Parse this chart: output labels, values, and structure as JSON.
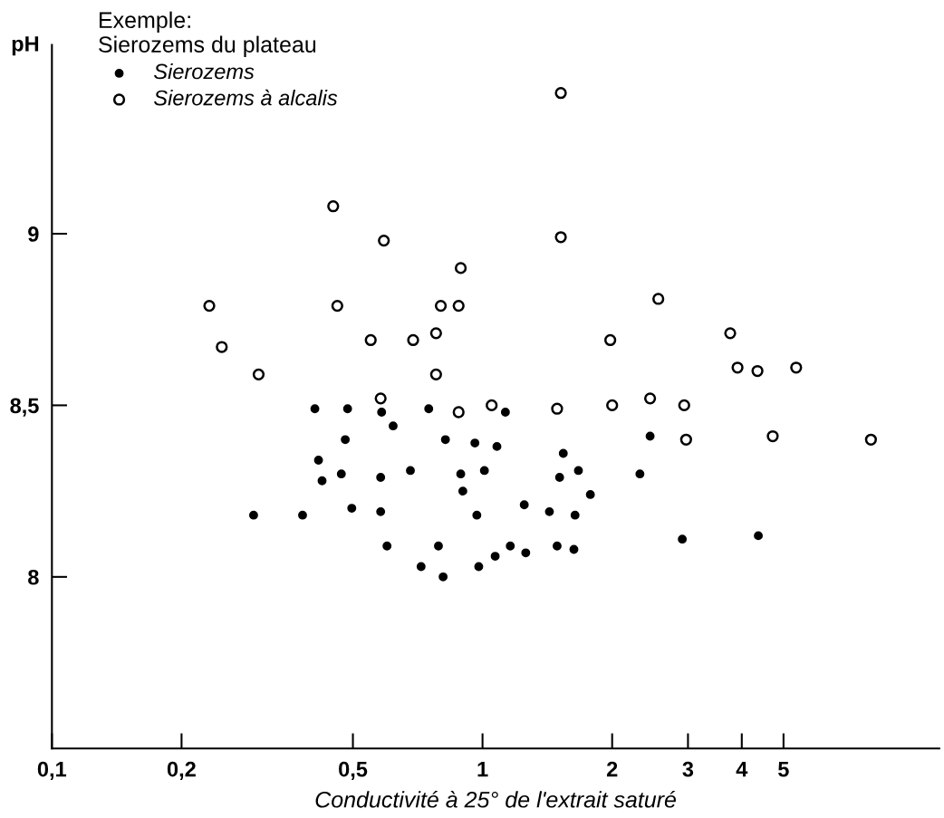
{
  "chart_data": {
    "type": "scatter",
    "xlabel": "Conductivité à 25° de l'extrait saturé",
    "ylabel": "pH",
    "legend_title": "Exemple:\nSierozems du plateau",
    "log": "x",
    "xlim": [
      0.1,
      11.5
    ],
    "ylim": [
      7.5,
      9.55
    ],
    "xticks": [
      {
        "value": 0.1,
        "label": "0,1"
      },
      {
        "value": 0.2,
        "label": "0,2"
      },
      {
        "value": 0.5,
        "label": "0,5"
      },
      1,
      2,
      3,
      4,
      5
    ],
    "yticks": [
      8,
      {
        "value": 8.5,
        "label": "8,5"
      },
      9
    ],
    "grid": false,
    "legend": "top left",
    "series": [
      {
        "name": "Sierozems",
        "color": "#000000",
        "marker": "circle",
        "x": [
          0.294,
          0.382,
          0.408,
          0.416,
          0.424,
          0.497,
          0.486,
          0.48,
          0.47,
          0.583,
          0.58,
          0.58,
          0.6,
          0.62,
          0.68,
          0.72,
          0.75,
          0.79,
          0.81,
          0.82,
          0.89,
          0.9,
          0.96,
          0.97,
          0.98,
          1.01,
          1.07,
          1.08,
          1.13,
          1.16,
          1.25,
          1.26,
          1.43,
          1.49,
          1.51,
          1.54,
          1.63,
          1.64,
          1.67,
          1.78,
          2.32,
          2.45,
          2.91,
          4.37
        ],
        "values": [
          8.18,
          8.18,
          8.49,
          8.34,
          8.28,
          8.2,
          8.49,
          8.4,
          8.3,
          8.48,
          8.29,
          8.19,
          8.09,
          8.44,
          8.31,
          8.03,
          8.49,
          8.09,
          8.0,
          8.4,
          8.3,
          8.25,
          8.39,
          8.18,
          8.03,
          8.31,
          8.06,
          8.38,
          8.48,
          8.09,
          8.21,
          8.07,
          8.19,
          8.09,
          8.29,
          8.36,
          8.08,
          8.18,
          8.31,
          8.24,
          8.3,
          8.41,
          8.11,
          8.12
        ]
      },
      {
        "name": "Sierozems à alcalis",
        "color": "#000000",
        "marker": "circle",
        "x": [
          0.232,
          0.248,
          0.302,
          0.45,
          0.46,
          0.55,
          0.58,
          0.59,
          0.69,
          0.78,
          0.78,
          0.8,
          0.88,
          0.89,
          0.88,
          1.05,
          1.49,
          1.52,
          1.52,
          1.98,
          2.0,
          2.45,
          2.56,
          2.94,
          2.97,
          3.76,
          3.91,
          4.35,
          5.35,
          4.72,
          7.98
        ],
        "values": [
          8.79,
          8.67,
          8.59,
          9.08,
          8.79,
          8.69,
          8.52,
          8.98,
          8.69,
          8.71,
          8.59,
          8.79,
          8.79,
          8.9,
          8.48,
          8.5,
          8.49,
          9.41,
          8.99,
          8.69,
          8.5,
          8.52,
          8.81,
          8.5,
          8.4,
          8.71,
          8.61,
          8.6,
          8.61,
          8.41,
          8.4
        ]
      }
    ]
  }
}
